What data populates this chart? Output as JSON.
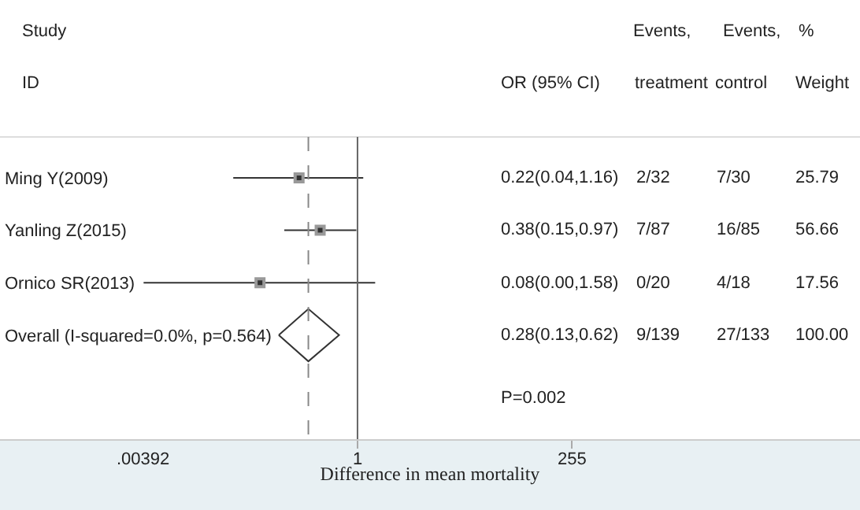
{
  "chart_data": {
    "type": "scatter",
    "orientation": "horizontal",
    "log": "x",
    "xlabel": "Difference in mean mortality",
    "categories": [
      "Ming Y(2009)",
      "Yanling Z(2015)",
      "Ornico SR(2013)",
      "Overall (I-squared=0.0%, p=0.564)"
    ],
    "series": [
      {
        "color": "#333333",
        "marker": "square",
        "values": [
          0.22,
          0.38,
          0.08,
          null
        ],
        "errors": [
          [
            0.04,
            1.16
          ],
          [
            0.15,
            0.97
          ],
          [
            0.00392,
            1.58
          ],
          null
        ]
      },
      {
        "color": "#333333",
        "marker": "diamond",
        "values": [
          null,
          null,
          null,
          0.28
        ],
        "errors": [
          null,
          null,
          null,
          [
            0.13,
            0.62
          ]
        ]
      }
    ],
    "xlim": [
      9.5e-05,
      450000
    ],
    "xticks": [
      {
        "value": 0.00392,
        "label": ".00392"
      },
      1,
      255
    ],
    "ref_lines": [
      {
        "axis": "x",
        "value": 1,
        "line_style": "solid",
        "color": "#666666"
      },
      {
        "axis": "x",
        "value": 0.28,
        "line_style": "dashed",
        "color": "#888888"
      }
    ],
    "annotations": [
      "Study",
      "ID",
      "OR (95% CI)",
      "Events,",
      "treatment",
      "Events,",
      "control",
      "%",
      "Weight",
      "0.22(0.04,1.16)",
      "2/32",
      "7/30",
      "25.79",
      "0.38(0.15,0.97)",
      "7/87",
      "16/85",
      "56.66",
      "0.08(0.00,1.58)",
      "0/20",
      "4/18",
      "17.56",
      "0.28(0.13,0.62)",
      "9/139",
      "27/133",
      "100.00",
      "P=0.002"
    ],
    "grid": false
  }
}
